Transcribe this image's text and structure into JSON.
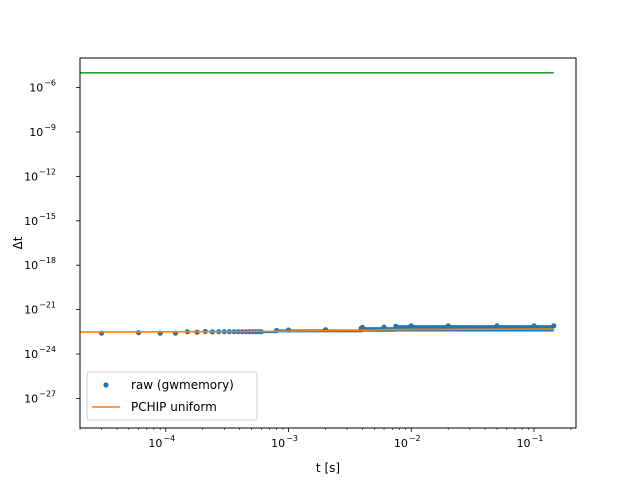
{
  "chart_data": {
    "type": "scatter",
    "title": "",
    "xlabel": "t [s]",
    "ylabel": "Δt",
    "xscale": "log",
    "yscale": "log",
    "xlim": [
      2e-05,
      0.22
    ],
    "ylim": [
      1e-29,
      0.0001
    ],
    "grid": false,
    "legend_position": "lower-left",
    "x_ticks": [
      {
        "value": 0.0001,
        "base": "10",
        "exp": "−4"
      },
      {
        "value": 0.001,
        "base": "10",
        "exp": "−3"
      },
      {
        "value": 0.01,
        "base": "10",
        "exp": "−2"
      },
      {
        "value": 0.1,
        "base": "10",
        "exp": "−1"
      }
    ],
    "y_ticks": [
      {
        "value": 1e-06,
        "base": "10",
        "exp": "−6"
      },
      {
        "value": 1e-09,
        "base": "10",
        "exp": "−9"
      },
      {
        "value": 1e-12,
        "base": "10",
        "exp": "−12"
      },
      {
        "value": 1e-15,
        "base": "10",
        "exp": "−15"
      },
      {
        "value": 1e-18,
        "base": "10",
        "exp": "−18"
      },
      {
        "value": 1e-21,
        "base": "10",
        "exp": "−21"
      },
      {
        "value": 1e-24,
        "base": "10",
        "exp": "−24"
      },
      {
        "value": 1e-27,
        "base": "10",
        "exp": "−27"
      }
    ],
    "series": [
      {
        "name": "raw (gwmemory)",
        "kind": "points",
        "color": "#1f77b4",
        "x": [
          3e-05,
          6e-05,
          9e-05,
          0.00012,
          0.00015,
          0.00018,
          0.00021,
          0.00024,
          0.00027,
          0.0003,
          0.00033,
          0.00036,
          0.00039,
          0.00042,
          0.00045,
          0.00048,
          0.00051,
          0.00054,
          0.00057,
          0.0006,
          0.0008,
          0.001,
          0.002,
          0.0039,
          0.004,
          0.006,
          0.0075,
          0.01,
          0.02,
          0.05,
          0.1,
          0.145
        ],
        "y": [
          2.6e-23,
          2.8e-23,
          2.6e-23,
          2.6e-23,
          3.2e-23,
          3e-23,
          3.3e-23,
          3.1e-23,
          3.2e-23,
          3.2e-23,
          3.2e-23,
          3.2e-23,
          3.2e-23,
          3.2e-23,
          3.2e-23,
          3.2e-23,
          3.2e-23,
          3.2e-23,
          3.2e-23,
          3.2e-23,
          3.9e-23,
          4.2e-23,
          4.4e-23,
          5.4e-23,
          6.4e-23,
          6.6e-23,
          7.6e-23,
          8e-23,
          8e-23,
          8e-23,
          8e-23,
          8e-23
        ],
        "band": {
          "x": [
            0.0004,
            0.0008,
            0.0008,
            0.004,
            0.004,
            0.0075,
            0.0075,
            0.145
          ],
          "upper": [
            3.2e-23,
            3.2e-23,
            4.6e-23,
            4.6e-23,
            6.6e-23,
            6.6e-23,
            9e-23,
            9e-23
          ],
          "lower": [
            2.6e-23,
            2.6e-23,
            2.9e-23,
            2.9e-23,
            3.2e-23,
            3.2e-23,
            3.3e-23,
            3.3e-23
          ]
        }
      },
      {
        "name": "PCHIP uniform",
        "kind": "line",
        "color": "#ff7f0e",
        "x": [
          2e-05,
          0.0008,
          0.001,
          0.004,
          0.006,
          0.01,
          0.145
        ],
        "y": [
          3e-23,
          3.4e-23,
          3.6e-23,
          4e-23,
          4.4e-23,
          4.6e-23,
          4.8e-23
        ]
      },
      {
        "name": "",
        "kind": "line",
        "color": "#2ca02c",
        "x": [
          2e-05,
          0.145
        ],
        "y": [
          1e-05,
          1e-05
        ]
      }
    ]
  }
}
